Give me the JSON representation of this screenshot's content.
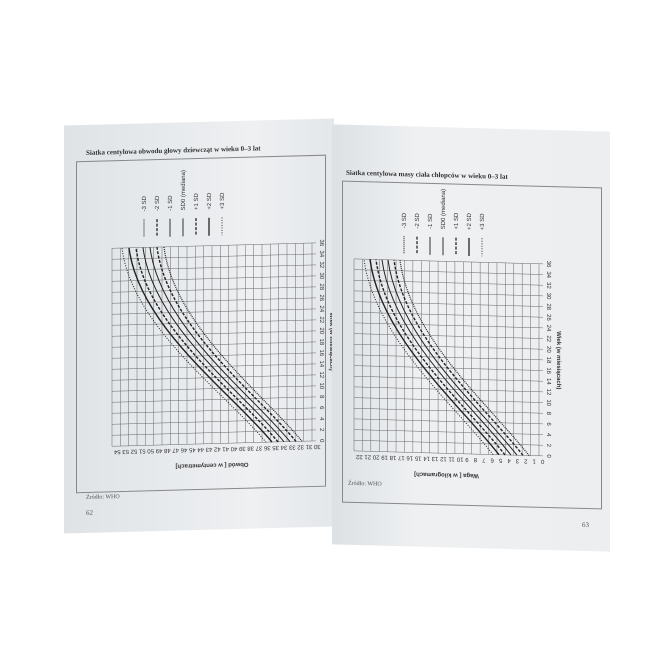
{
  "left_page": {
    "title": "Siatka centylowa obwodu głowy dziewcząt w wieku 0–3 lat",
    "legend": [
      "-3 SD",
      "-2 SD",
      "-1 SD",
      "SD0 (mediana)",
      "+1 SD",
      "+2 SD",
      "+3 SD"
    ],
    "y_axis_label": "Obwód [ w centymetrach]",
    "y_ticks": [
      54,
      53,
      52,
      51,
      50,
      49,
      48,
      47,
      46,
      45,
      44,
      43,
      42,
      41,
      40,
      39,
      38,
      37,
      36,
      35,
      34,
      33,
      32,
      31,
      30
    ],
    "x_axis_label": "Wiek (w miesiącach)",
    "x_ticks": [
      0,
      2,
      4,
      6,
      8,
      10,
      12,
      14,
      16,
      18,
      20,
      22,
      24,
      26,
      28,
      30,
      32,
      34,
      36
    ],
    "source": "Źródło: WHO",
    "page_number": "62"
  },
  "right_page": {
    "title": "Siatka centylowa masy ciała chłopców w wieku 0–3 lat",
    "legend": [
      "-3 SD",
      "-2 SD",
      "-1 SD",
      "SD0 (mediana)",
      "+1 SD",
      "+2 SD",
      "+3 SD"
    ],
    "y_axis_label": "Waga [ w kilogramach]",
    "y_ticks": [
      22,
      21,
      20,
      19,
      18,
      17,
      16,
      15,
      14,
      13,
      12,
      11,
      10,
      9,
      8,
      7,
      6,
      5,
      4,
      3,
      2,
      1,
      0
    ],
    "x_axis_label": "Wiek (w miesiącach)",
    "x_ticks": [
      0,
      2,
      4,
      6,
      8,
      10,
      12,
      14,
      16,
      18,
      20,
      22,
      24,
      26,
      28,
      30,
      32,
      34,
      36
    ],
    "source": "Źródło: WHO",
    "page_number": "63"
  }
}
